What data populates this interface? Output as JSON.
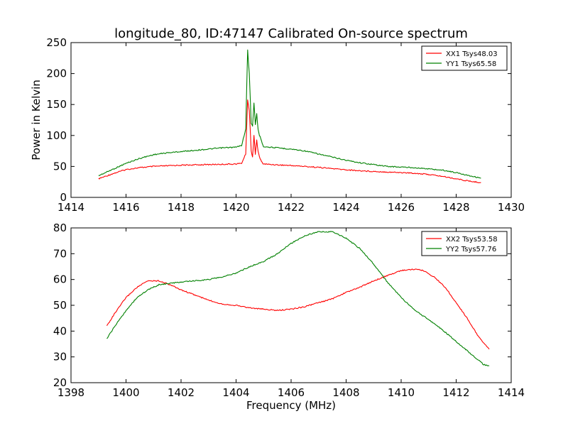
{
  "figure_title": "longitude_80, ID:47147 Calibrated On-source spectrum",
  "chart_data": [
    {
      "type": "line",
      "title": "longitude_80, ID:47147 Calibrated On-source spectrum",
      "xlabel": "",
      "ylabel": "Power in Kelvin",
      "xlim": [
        1414,
        1430
      ],
      "ylim": [
        0,
        250
      ],
      "xticks": [
        1414,
        1416,
        1418,
        1420,
        1422,
        1424,
        1426,
        1428,
        1430
      ],
      "yticks": [
        0,
        50,
        100,
        150,
        200,
        250
      ],
      "grid": false,
      "legend_position": "top-right",
      "series": [
        {
          "name": "XX1 Tsys48.03",
          "color": "#ff0000",
          "x": [
            1415.0,
            1415.5,
            1416.0,
            1416.5,
            1417.0,
            1417.5,
            1418.0,
            1418.5,
            1419.0,
            1419.5,
            1420.0,
            1420.2,
            1420.35,
            1420.42,
            1420.48,
            1420.55,
            1420.6,
            1420.65,
            1420.7,
            1420.75,
            1420.8,
            1420.85,
            1420.9,
            1420.95,
            1421.0,
            1421.5,
            1422.0,
            1422.5,
            1423.0,
            1423.5,
            1424.0,
            1424.5,
            1425.0,
            1425.5,
            1426.0,
            1426.5,
            1427.0,
            1427.5,
            1428.0,
            1428.5,
            1428.9
          ],
          "y": [
            30,
            38,
            45,
            48,
            50,
            51,
            52,
            52.5,
            53,
            53.5,
            54,
            55,
            70,
            158,
            140,
            75,
            65,
            100,
            70,
            92,
            75,
            65,
            60,
            56,
            54,
            52.5,
            51.5,
            50,
            48.5,
            46.5,
            44.5,
            43,
            42,
            41,
            40,
            39,
            37,
            34,
            30,
            26,
            24
          ]
        },
        {
          "name": "YY1 Tsys65.58",
          "color": "#008000",
          "x": [
            1415.0,
            1415.5,
            1416.0,
            1416.5,
            1417.0,
            1417.5,
            1418.0,
            1418.5,
            1419.0,
            1419.5,
            1420.0,
            1420.2,
            1420.35,
            1420.42,
            1420.48,
            1420.55,
            1420.6,
            1420.65,
            1420.7,
            1420.75,
            1420.8,
            1420.85,
            1420.9,
            1420.95,
            1421.0,
            1421.5,
            1422.0,
            1422.5,
            1423.0,
            1423.5,
            1424.0,
            1424.5,
            1425.0,
            1425.5,
            1426.0,
            1426.5,
            1427.0,
            1427.5,
            1428.0,
            1428.5,
            1428.9
          ],
          "y": [
            35,
            45,
            55,
            63,
            69,
            72,
            74,
            76,
            78,
            80,
            81,
            84,
            110,
            238,
            200,
            120,
            115,
            152,
            118,
            135,
            110,
            100,
            95,
            88,
            82,
            80,
            78,
            75,
            70,
            65,
            60,
            56,
            53,
            50,
            49,
            48,
            46,
            44,
            40,
            35,
            31
          ]
        }
      ]
    },
    {
      "type": "line",
      "title": "",
      "xlabel": "Frequency (MHz)",
      "ylabel": "",
      "xlim": [
        1398,
        1414
      ],
      "ylim": [
        20,
        80
      ],
      "xticks": [
        1398,
        1400,
        1402,
        1404,
        1406,
        1408,
        1410,
        1412,
        1414
      ],
      "yticks": [
        20,
        30,
        40,
        50,
        60,
        70,
        80
      ],
      "grid": false,
      "legend_position": "top-right",
      "series": [
        {
          "name": "XX2 Tsys53.58",
          "color": "#ff0000",
          "x": [
            1399.3,
            1399.6,
            1400.0,
            1400.4,
            1400.8,
            1401.2,
            1401.6,
            1402.0,
            1402.5,
            1403.0,
            1403.5,
            1404.0,
            1404.5,
            1405.0,
            1405.5,
            1406.0,
            1406.5,
            1407.0,
            1407.5,
            1408.0,
            1408.5,
            1409.0,
            1409.5,
            1410.0,
            1410.5,
            1410.8,
            1411.2,
            1411.6,
            1412.0,
            1412.4,
            1412.8,
            1413.2
          ],
          "y": [
            42,
            47,
            53,
            57,
            59.5,
            59.5,
            58,
            56,
            54,
            52,
            50.5,
            50,
            49,
            48.5,
            48,
            48.5,
            49.5,
            51,
            52.5,
            55,
            57,
            59.5,
            61.5,
            63.5,
            64,
            63.5,
            61,
            57,
            51,
            45,
            38,
            33
          ]
        },
        {
          "name": "YY2 Tsys57.76",
          "color": "#008000",
          "x": [
            1399.3,
            1399.6,
            1400.0,
            1400.4,
            1400.8,
            1401.2,
            1401.6,
            1402.0,
            1402.5,
            1403.0,
            1403.5,
            1404.0,
            1404.5,
            1405.0,
            1405.5,
            1406.0,
            1406.5,
            1407.0,
            1407.5,
            1408.0,
            1408.5,
            1409.0,
            1409.5,
            1410.0,
            1410.5,
            1411.0,
            1411.5,
            1412.0,
            1412.5,
            1413.0,
            1413.2
          ],
          "y": [
            37,
            42,
            48,
            53,
            56,
            58,
            58.5,
            59,
            59.5,
            60,
            61,
            62.5,
            65,
            67,
            70,
            74,
            77,
            78.5,
            78.5,
            76,
            72,
            66,
            59,
            53,
            48,
            44.5,
            40.5,
            36,
            31.5,
            27,
            26.5
          ]
        }
      ]
    }
  ]
}
